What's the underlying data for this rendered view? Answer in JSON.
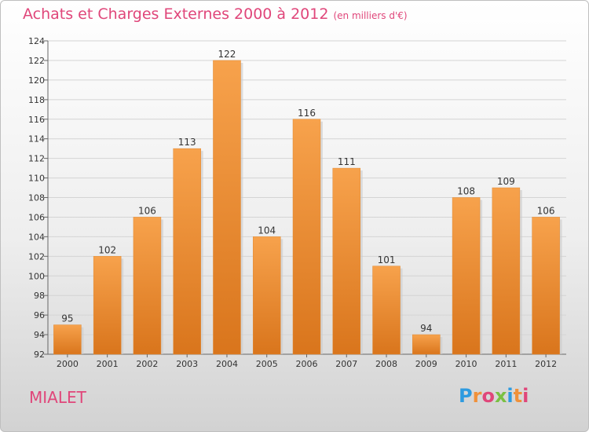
{
  "chart_data": {
    "type": "bar",
    "title": "Achats et Charges Externes 2000 à 2012",
    "subtitle": "(en milliers d'€)",
    "categories": [
      "2000",
      "2001",
      "2002",
      "2003",
      "2004",
      "2005",
      "2006",
      "2007",
      "2008",
      "2009",
      "2010",
      "2011",
      "2012"
    ],
    "values": [
      95,
      102,
      106,
      113,
      122,
      104,
      116,
      111,
      101,
      94,
      108,
      109,
      106
    ],
    "xlabel": "",
    "ylabel": "",
    "ylim": [
      92,
      124
    ],
    "yticks": [
      92,
      94,
      96,
      98,
      100,
      102,
      104,
      106,
      108,
      110,
      112,
      114,
      116,
      118,
      120,
      122,
      124
    ],
    "grid": true,
    "bar_color": "#f0913a"
  },
  "footer": {
    "place": "MIALET",
    "logo_letters": [
      "P",
      "r",
      "o",
      "x",
      "i",
      "t",
      "i"
    ],
    "logo_colors": [
      "#2e9be0",
      "#f0913a",
      "#e0467a",
      "#7ac043",
      "#2e9be0",
      "#f0913a",
      "#e0467a"
    ]
  }
}
